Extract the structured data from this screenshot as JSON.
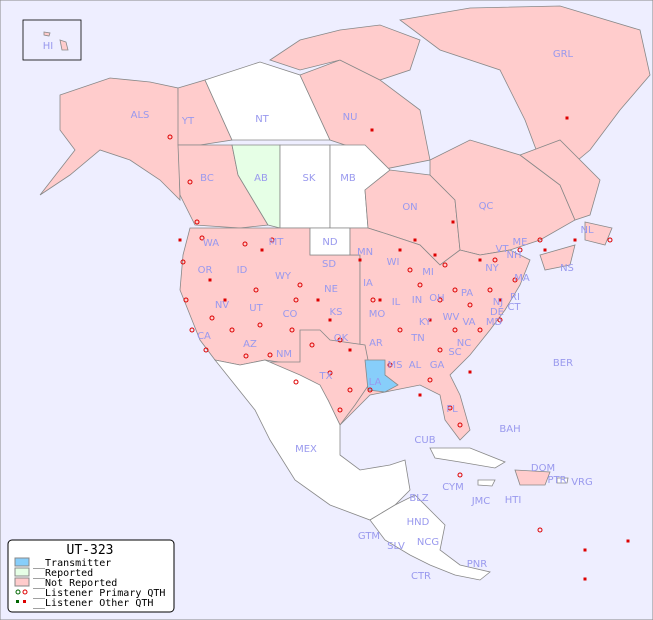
{
  "map": {
    "title": "UT-323",
    "colors": {
      "ocean": "#eeeeff",
      "not_reported": "#ffcccc",
      "reported": "#e6ffe6",
      "transmitter": "#87cefa",
      "unlisted": "#ffffff",
      "border": "#888888",
      "dot": "#dd0000",
      "label": "#9999ee"
    },
    "regions": {
      "HI": "HI",
      "ALS": "ALS",
      "YT": "YT",
      "NT": "NT",
      "NU": "NU",
      "GRL": "GRL",
      "BC": "BC",
      "AB": "AB",
      "SK": "SK",
      "MB": "MB",
      "ON": "ON",
      "QC": "QC",
      "NL": "NL",
      "NS": "NS",
      "WA": "WA",
      "OR": "OR",
      "CA": "CA",
      "ID": "ID",
      "NV": "NV",
      "MT": "MT",
      "WY": "WY",
      "UT": "UT",
      "AZ": "AZ",
      "CO": "CO",
      "NM": "NM",
      "ND": "ND",
      "SD": "SD",
      "NE": "NE",
      "KS": "KS",
      "OK": "OK",
      "TX": "TX",
      "MN": "MN",
      "IA": "IA",
      "MO": "MO",
      "AR": "AR",
      "LA": "LA",
      "WI": "WI",
      "IL": "IL",
      "MS": "MS",
      "MI": "MI",
      "IN": "IN",
      "KY": "KY",
      "TN": "TN",
      "AL": "AL",
      "OH": "OH",
      "WV": "WV",
      "VA": "VA",
      "NC": "NC",
      "SC": "SC",
      "GA": "GA",
      "FL": "FL",
      "PA": "PA",
      "NY": "NY",
      "VT": "VT",
      "NH": "NH",
      "ME": "ME",
      "MA": "MA",
      "RI": "RI",
      "CT": "CT",
      "NJ": "NJ",
      "DE": "DE",
      "MD": "MD",
      "BER": "BER",
      "MEX": "MEX",
      "CUB": "CUB",
      "BAH": "BAH",
      "DOM": "DOM",
      "PTR": "PTR",
      "VRG": "VRG",
      "HTI": "HTI",
      "JMC": "JMC",
      "CYM": "CYM",
      "BLZ": "BLZ",
      "HND": "HND",
      "GTM": "GTM",
      "SLV": "SLV",
      "NCG": "NCG",
      "CTR": "CTR",
      "PNR": "PNR"
    },
    "legend": {
      "title": "UT-323",
      "items": [
        {
          "label": "__Transmitter",
          "swatch": "transmitter"
        },
        {
          "label": "__Reported",
          "swatch": "reported"
        },
        {
          "label": "__Not Reported",
          "swatch": "not_reported"
        },
        {
          "label": "__Listener Primary QTH",
          "swatch": "circle"
        },
        {
          "label": "__Listener Other QTH",
          "swatch": "square"
        }
      ]
    }
  }
}
